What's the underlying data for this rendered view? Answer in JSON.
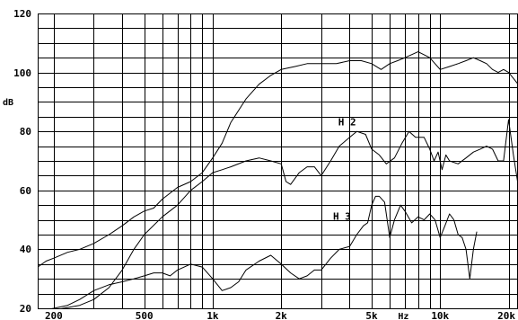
{
  "chart_data": {
    "type": "line",
    "title": "",
    "xlabel": "Hz",
    "ylabel": "dB",
    "xscale": "log",
    "xlim": [
      170,
      22000
    ],
    "ylim": [
      20,
      120
    ],
    "grid": true,
    "x_ticks": [
      {
        "value": 200,
        "label": "200"
      },
      {
        "value": 500,
        "label": "500"
      },
      {
        "value": 1000,
        "label": "1k"
      },
      {
        "value": 2000,
        "label": "2k"
      },
      {
        "value": 5000,
        "label": "5k"
      },
      {
        "value": 10000,
        "label": "10k"
      },
      {
        "value": 20000,
        "label": "20k"
      }
    ],
    "y_ticks": [
      {
        "value": 20,
        "label": "20"
      },
      {
        "value": 40,
        "label": "40"
      },
      {
        "value": 60,
        "label": "60"
      },
      {
        "value": 80,
        "label": "80"
      },
      {
        "value": 100,
        "label": "100"
      },
      {
        "value": 120,
        "label": "120"
      }
    ],
    "series": [
      {
        "name": "",
        "x": [
          170,
          185,
          200,
          230,
          260,
          300,
          350,
          400,
          450,
          500,
          550,
          600,
          700,
          800,
          900,
          1000,
          1100,
          1200,
          1400,
          1600,
          1800,
          2000,
          2300,
          2600,
          3000,
          3500,
          4000,
          4500,
          5000,
          5500,
          6000,
          6500,
          7000,
          8000,
          8500,
          9000,
          10000,
          11000,
          12000,
          13000,
          14000,
          15000,
          16000,
          17000,
          18000,
          19000,
          20000,
          21000,
          22000
        ],
        "y": [
          34,
          36,
          37,
          39,
          40,
          42,
          45,
          48,
          51,
          53,
          54,
          57,
          61,
          63,
          66,
          71,
          76,
          83,
          91,
          96,
          99,
          101,
          102,
          103,
          103,
          103,
          104,
          104,
          103,
          101,
          103,
          104,
          105,
          107,
          106,
          105,
          101,
          102,
          103,
          104,
          105,
          104,
          103,
          101,
          100,
          101,
          100,
          98,
          96
        ]
      },
      {
        "name": "H 2",
        "x": [
          170,
          190,
          220,
          260,
          300,
          350,
          400,
          450,
          500,
          600,
          700,
          800,
          900,
          1000,
          1100,
          1200,
          1400,
          1600,
          1800,
          2000,
          2100,
          2200,
          2400,
          2600,
          2800,
          3000,
          3300,
          3600,
          4000,
          4300,
          4700,
          5000,
          5400,
          5800,
          6300,
          6800,
          7300,
          7800,
          8500,
          9000,
          9400,
          9800,
          10200,
          10600,
          11000,
          12000,
          13000,
          14000,
          15000,
          16000,
          17000,
          18000,
          19000,
          20000,
          21000,
          22000
        ],
        "y": [
          19,
          19,
          20,
          21,
          23,
          27,
          33,
          40,
          45,
          51,
          55,
          60,
          63,
          66,
          67,
          68,
          70,
          71,
          70,
          69,
          63,
          62,
          66,
          68,
          68,
          65,
          70,
          75,
          78,
          80,
          79,
          74,
          72,
          69,
          71,
          76,
          80,
          78,
          78,
          74,
          70,
          73,
          67,
          72,
          70,
          69,
          71,
          73,
          74,
          75,
          74,
          70,
          70,
          84,
          72,
          62
        ]
      },
      {
        "name": "H 3",
        "x": [
          170,
          200,
          230,
          260,
          300,
          350,
          400,
          450,
          500,
          550,
          600,
          650,
          700,
          800,
          900,
          1000,
          1100,
          1200,
          1300,
          1400,
          1600,
          1800,
          2000,
          2200,
          2400,
          2600,
          2800,
          3000,
          3300,
          3600,
          4000,
          4300,
          4600,
          4800,
          5000,
          5200,
          5400,
          5700,
          6000,
          6300,
          6700,
          7000,
          7500,
          8000,
          8500,
          9000,
          9500,
          10000,
          10500,
          11000,
          11500,
          12000,
          12500,
          13000,
          13500,
          14000,
          14500
        ],
        "y": [
          19,
          20,
          21,
          23,
          26,
          28,
          29,
          30,
          31,
          32,
          32,
          31,
          33,
          35,
          34,
          30,
          26,
          27,
          29,
          33,
          36,
          38,
          35,
          32,
          30,
          31,
          33,
          33,
          37,
          40,
          41,
          45,
          48,
          49,
          55,
          58,
          58,
          56,
          44,
          50,
          55,
          53,
          49,
          51,
          50,
          52,
          50,
          44,
          48,
          52,
          50,
          45,
          44,
          40,
          30,
          40,
          46
        ]
      }
    ]
  }
}
